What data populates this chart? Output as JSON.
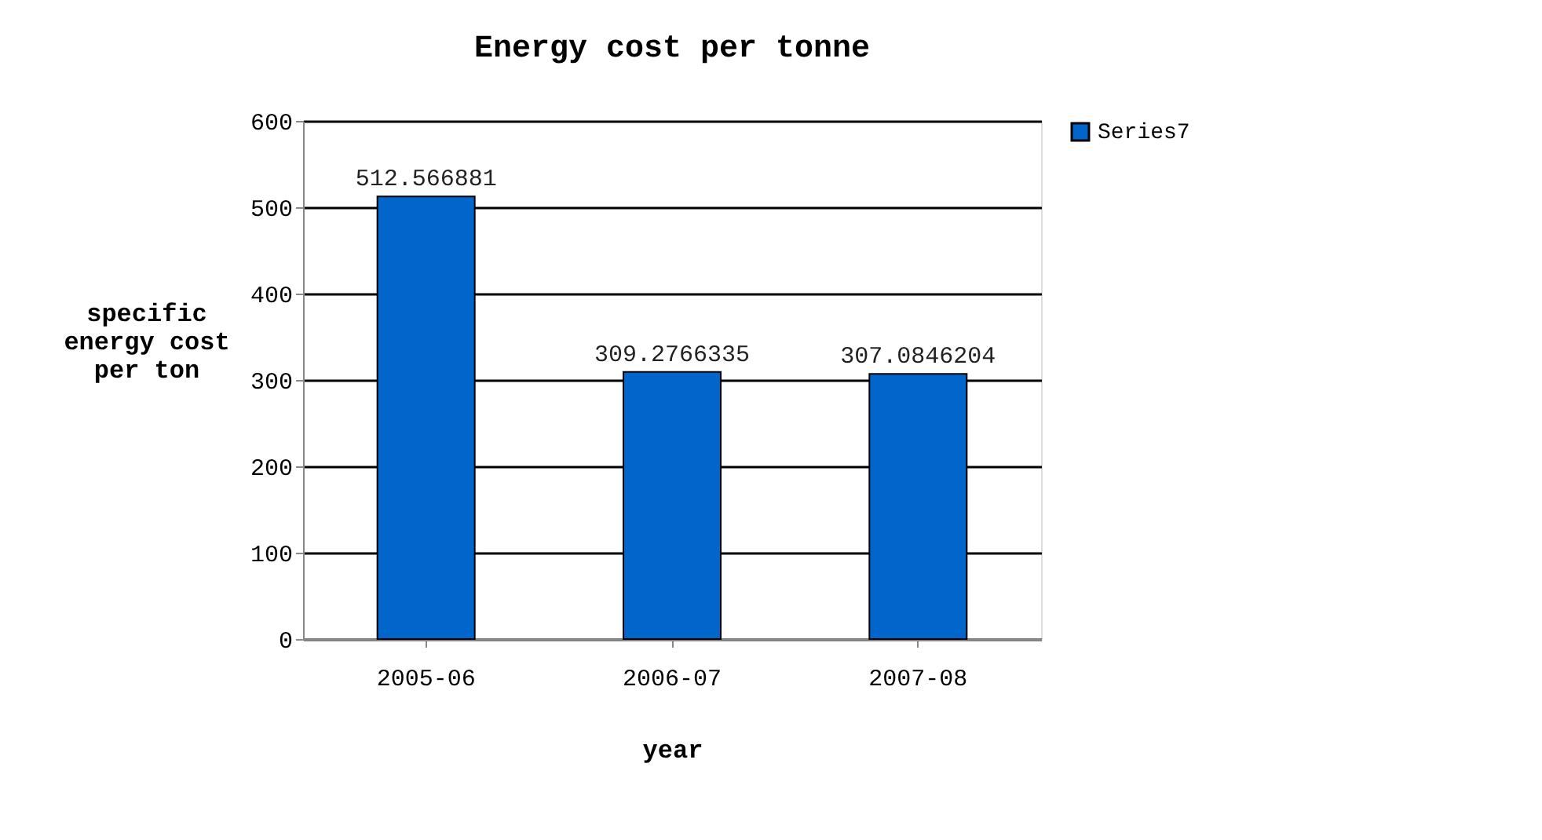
{
  "chart_data": {
    "type": "bar",
    "title": "Energy cost per tonne",
    "xlabel": "year",
    "ylabel": "specific energy cost per ton",
    "categories": [
      "2005-06",
      "2006-07",
      "2007-08"
    ],
    "series": [
      {
        "name": "Series7",
        "color": "#0066cc",
        "values": [
          512.566881,
          309.2766335,
          307.0846204
        ]
      }
    ],
    "ylim": [
      0,
      600
    ],
    "yticks": [
      0,
      100,
      200,
      300,
      400,
      500,
      600
    ],
    "grid": "y",
    "legend": "right",
    "data_labels": true
  }
}
